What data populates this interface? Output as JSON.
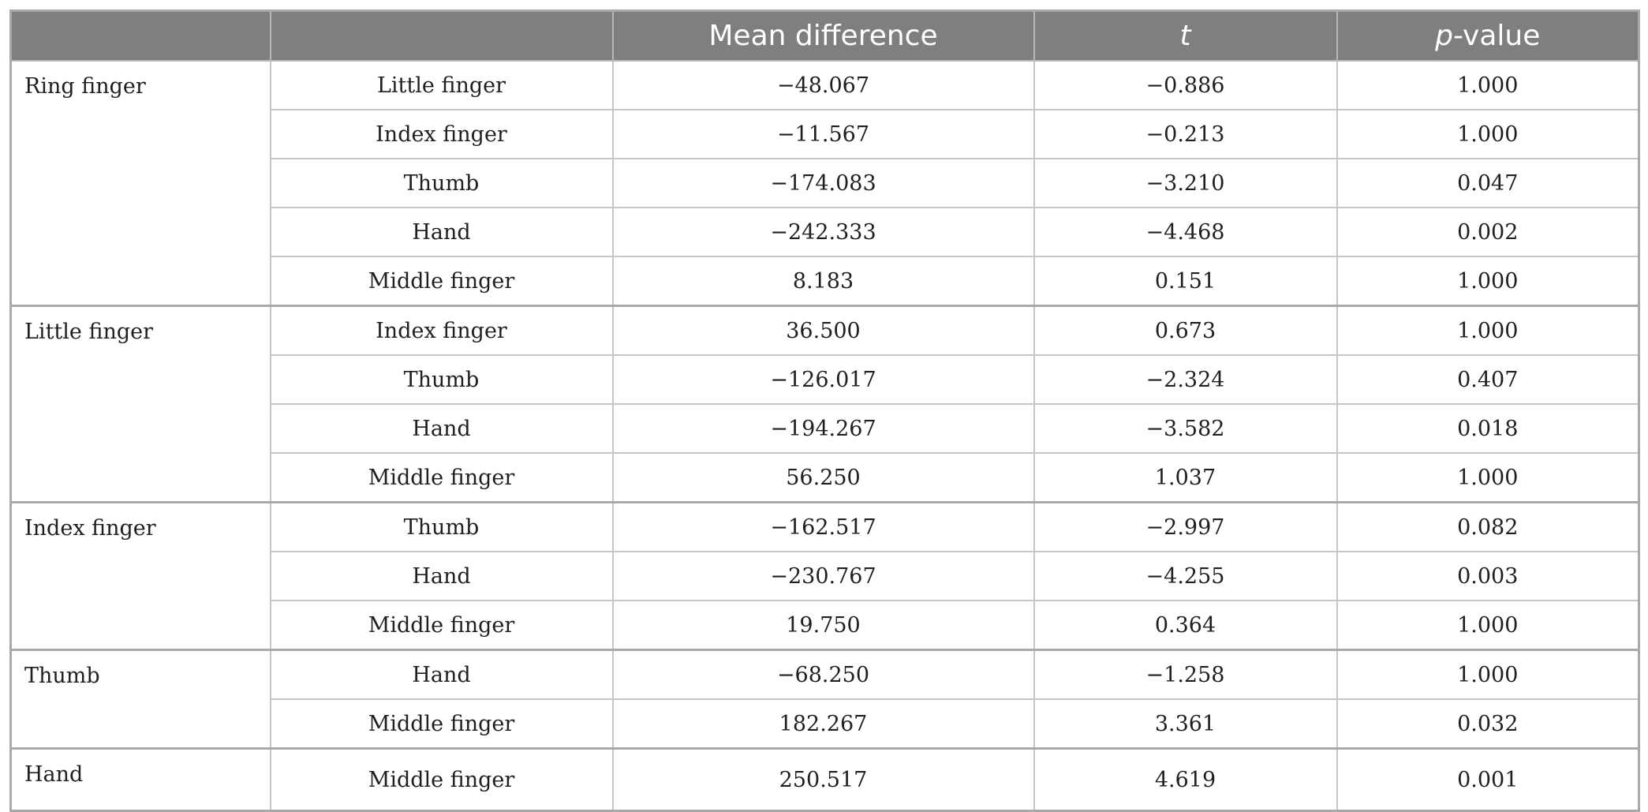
{
  "table": {
    "headers": [
      "",
      "",
      "Mean difference",
      "t",
      "p-value"
    ],
    "header_pvalue_italic": "p",
    "header_pvalue_rest": "-value",
    "groups": [
      {
        "label": "Ring finger",
        "rows": [
          {
            "comparison": "Little finger",
            "mean_difference": "−48.067",
            "t": "−0.886",
            "p_value": "1.000"
          },
          {
            "comparison": "Index finger",
            "mean_difference": "−11.567",
            "t": "−0.213",
            "p_value": "1.000"
          },
          {
            "comparison": "Thumb",
            "mean_difference": "−174.083",
            "t": "−3.210",
            "p_value": "0.047"
          },
          {
            "comparison": "Hand",
            "mean_difference": "−242.333",
            "t": "−4.468",
            "p_value": "0.002"
          },
          {
            "comparison": "Middle finger",
            "mean_difference": "8.183",
            "t": "0.151",
            "p_value": "1.000"
          }
        ]
      },
      {
        "label": "Little finger",
        "rows": [
          {
            "comparison": "Index finger",
            "mean_difference": "36.500",
            "t": "0.673",
            "p_value": "1.000"
          },
          {
            "comparison": "Thumb",
            "mean_difference": "−126.017",
            "t": "−2.324",
            "p_value": "0.407"
          },
          {
            "comparison": "Hand",
            "mean_difference": "−194.267",
            "t": "−3.582",
            "p_value": "0.018"
          },
          {
            "comparison": "Middle finger",
            "mean_difference": "56.250",
            "t": "1.037",
            "p_value": "1.000"
          }
        ]
      },
      {
        "label": "Index finger",
        "rows": [
          {
            "comparison": "Thumb",
            "mean_difference": "−162.517",
            "t": "−2.997",
            "p_value": "0.082"
          },
          {
            "comparison": "Hand",
            "mean_difference": "−230.767",
            "t": "−4.255",
            "p_value": "0.003"
          },
          {
            "comparison": "Middle finger",
            "mean_difference": "19.750",
            "t": "0.364",
            "p_value": "1.000"
          }
        ]
      },
      {
        "label": "Thumb",
        "rows": [
          {
            "comparison": "Hand",
            "mean_difference": "−68.250",
            "t": "−1.258",
            "p_value": "1.000"
          },
          {
            "comparison": "Middle finger",
            "mean_difference": "182.267",
            "t": "3.361",
            "p_value": "0.032"
          }
        ]
      },
      {
        "label": "Hand",
        "rows": [
          {
            "comparison": "Middle finger",
            "mean_difference": "250.517",
            "t": "4.619",
            "p_value": "0.001"
          }
        ]
      }
    ]
  }
}
